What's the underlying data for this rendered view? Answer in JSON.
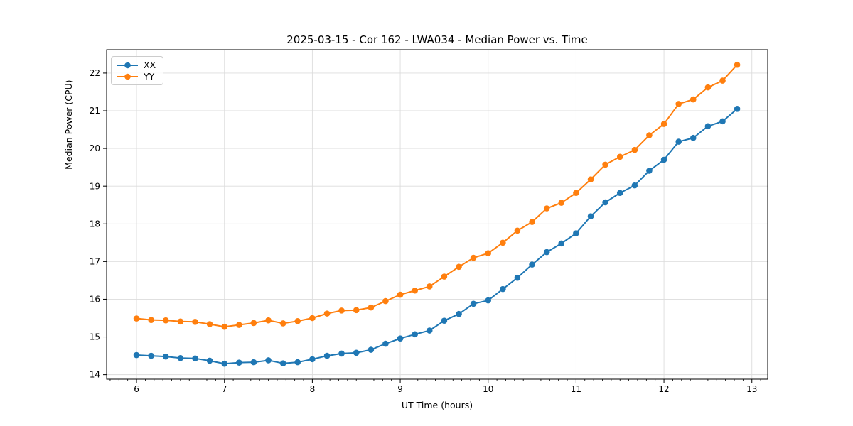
{
  "figure": {
    "title": "2025-03-15 - Cor 162 - LWA034 - Median Power vs. Time",
    "xlabel": "UT Time (hours)",
    "ylabel": "Median Power (CPU)"
  },
  "legend": {
    "position": "upper-left",
    "items": [
      {
        "label": "XX",
        "color": "#1f77b4"
      },
      {
        "label": "YY",
        "color": "#ff7f0e"
      }
    ]
  },
  "colors": {
    "series_xx": "#1f77b4",
    "series_yy": "#ff7f0e",
    "grid": "#dcdcdc",
    "spine": "#000000",
    "background": "#ffffff",
    "text": "#000000"
  },
  "chart_data": {
    "type": "line",
    "title": "2025-03-15 - Cor 162 - LWA034 - Median Power vs. Time",
    "xlabel": "UT Time (hours)",
    "ylabel": "Median Power (CPU)",
    "xlim": [
      5.66,
      13.18
    ],
    "ylim": [
      13.88,
      22.62
    ],
    "xticks": [
      6,
      7,
      8,
      9,
      10,
      11,
      12,
      13
    ],
    "yticks": [
      14,
      15,
      16,
      17,
      18,
      19,
      20,
      21,
      22
    ],
    "x_minor_step": 0.1,
    "grid": true,
    "legend_position": "upper left",
    "marker": "circle",
    "x": [
      6.0,
      6.167,
      6.333,
      6.5,
      6.667,
      6.833,
      7.0,
      7.167,
      7.333,
      7.5,
      7.667,
      7.833,
      8.0,
      8.167,
      8.333,
      8.5,
      8.667,
      8.833,
      9.0,
      9.167,
      9.333,
      9.5,
      9.667,
      9.833,
      10.0,
      10.167,
      10.333,
      10.5,
      10.667,
      10.833,
      11.0,
      11.167,
      11.333,
      11.5,
      11.667,
      11.833,
      12.0,
      12.167,
      12.333,
      12.5,
      12.667,
      12.833
    ],
    "series": [
      {
        "name": "XX",
        "color": "#1f77b4",
        "values": [
          14.52,
          14.5,
          14.48,
          14.44,
          14.43,
          14.37,
          14.29,
          14.32,
          14.33,
          14.38,
          14.3,
          14.33,
          14.41,
          14.5,
          14.56,
          14.58,
          14.66,
          14.82,
          14.96,
          15.07,
          15.17,
          15.43,
          15.61,
          15.88,
          15.97,
          16.27,
          16.57,
          16.92,
          17.25,
          17.48,
          17.75,
          18.2,
          18.57,
          18.82,
          19.02,
          19.41,
          19.7,
          20.18,
          20.28,
          20.59,
          20.72,
          21.05
        ]
      },
      {
        "name": "YY",
        "color": "#ff7f0e",
        "values": [
          15.49,
          15.45,
          15.44,
          15.41,
          15.4,
          15.34,
          15.27,
          15.32,
          15.37,
          15.44,
          15.36,
          15.42,
          15.5,
          15.62,
          15.7,
          15.71,
          15.78,
          15.95,
          16.12,
          16.23,
          16.34,
          16.6,
          16.86,
          17.1,
          17.22,
          17.5,
          17.82,
          18.05,
          18.41,
          18.56,
          18.82,
          19.18,
          19.57,
          19.78,
          19.96,
          20.35,
          20.65,
          21.18,
          21.3,
          21.62,
          21.8,
          22.22
        ]
      }
    ]
  }
}
